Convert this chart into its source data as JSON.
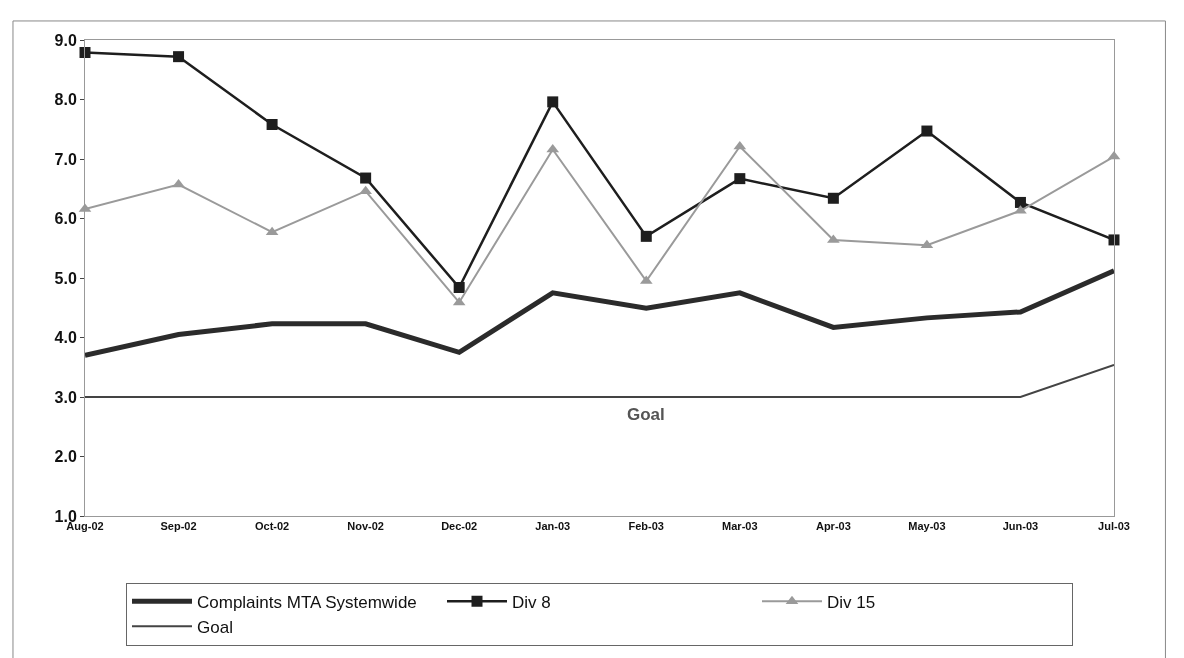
{
  "chart_data": {
    "type": "line",
    "categories": [
      "Aug-02",
      "Sep-02",
      "Oct-02",
      "Nov-02",
      "Dec-02",
      "Jan-03",
      "Feb-03",
      "Mar-03",
      "Apr-03",
      "May-03",
      "Jun-03",
      "Jul-03"
    ],
    "series": [
      {
        "name": "Complaints MTA Systemwide",
        "color": "#2b2b2b",
        "marker": "none",
        "values": [
          3.7,
          4.05,
          4.23,
          4.23,
          3.75,
          4.75,
          4.49,
          4.75,
          4.17,
          4.33,
          4.43,
          5.12
        ]
      },
      {
        "name": "Div 8",
        "color": "#1e1e1e",
        "marker": "square",
        "values": [
          8.79,
          8.72,
          7.58,
          6.68,
          4.84,
          7.96,
          5.7,
          6.67,
          6.34,
          7.47,
          6.27,
          5.64
        ]
      },
      {
        "name": "Div 15",
        "color": "#9a9a9a",
        "marker": "triangle",
        "values": [
          6.16,
          6.57,
          5.77,
          6.46,
          4.59,
          7.16,
          4.95,
          7.21,
          5.64,
          5.55,
          6.13,
          7.04
        ]
      },
      {
        "name": "Goal",
        "color": "#444444",
        "marker": "none",
        "values": [
          3.0,
          3.0,
          3.0,
          3.0,
          3.0,
          3.0,
          3.0,
          3.0,
          3.0,
          3.0,
          3.0,
          3.54
        ]
      }
    ],
    "ylim": [
      1,
      9
    ],
    "yticks": [
      {
        "value": 1,
        "label": "1.0"
      },
      {
        "value": 2,
        "label": "2.0"
      },
      {
        "value": 3,
        "label": "3.0"
      },
      {
        "value": 4,
        "label": "4.0"
      },
      {
        "value": 5,
        "label": "5.0"
      },
      {
        "value": 6,
        "label": "6.0"
      },
      {
        "value": 7,
        "label": "7.0"
      },
      {
        "value": 8,
        "label": "8.0"
      },
      {
        "value": 9,
        "label": "9.0"
      }
    ],
    "annotations": [
      {
        "text": "Goal",
        "x": "Feb-03",
        "y": 3.0
      }
    ],
    "grid": false,
    "legend": "bottom",
    "line_style": "solid"
  }
}
